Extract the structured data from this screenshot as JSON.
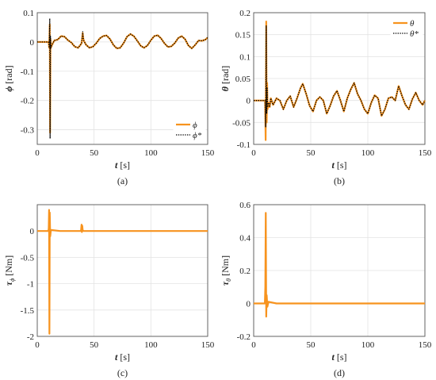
{
  "colors": {
    "measured": "#f7931e",
    "reference": "#000000",
    "grid": "#e3e3e3",
    "axis": "#555555"
  },
  "chart_data": [
    {
      "type": "line",
      "caption": "(a)",
      "xlabel_sym": "t",
      "xlabel_unit": "[s]",
      "ylabel_sym": "ϕ",
      "ylabel_unit": "[rad]",
      "xlim": [
        0,
        150
      ],
      "ylim": [
        -0.35,
        0.1
      ],
      "xticks": [
        0,
        50,
        100,
        150
      ],
      "yticks": [
        0.1,
        0,
        -0.1,
        -0.2,
        -0.3
      ],
      "ytick_labels": [
        "0.1",
        "0",
        "-0.1",
        "-0.2",
        "-0.3"
      ],
      "grid": true,
      "legend_position": "bottom-right",
      "series": [
        {
          "name": "ϕ",
          "style": "solid",
          "x": [
            0,
            10,
            10.5,
            11,
            11.3,
            11.6,
            12,
            13,
            15,
            18,
            21,
            24,
            27,
            30,
            33,
            36,
            39,
            40,
            40.5,
            41,
            43,
            46,
            49,
            52,
            55,
            58,
            61,
            64,
            67,
            70,
            73,
            76,
            79,
            82,
            85,
            88,
            91,
            94,
            97,
            100,
            103,
            106,
            109,
            112,
            115,
            118,
            121,
            124,
            127,
            130,
            133,
            136,
            139,
            142,
            145,
            148,
            150
          ],
          "y": [
            0,
            0,
            -0.02,
            0.06,
            -0.31,
            0.01,
            -0.02,
            -0.01,
            0.005,
            0.008,
            0.02,
            0.018,
            0.006,
            -0.002,
            -0.016,
            -0.02,
            -0.005,
            0.03,
            0.012,
            0.004,
            -0.01,
            -0.02,
            -0.016,
            -0.004,
            0.012,
            0.02,
            0.022,
            0.01,
            -0.01,
            -0.022,
            -0.02,
            -0.004,
            0.018,
            0.027,
            0.02,
            0.004,
            -0.013,
            -0.02,
            -0.012,
            0.006,
            0.02,
            0.023,
            0.012,
            -0.005,
            -0.017,
            -0.015,
            -0.004,
            0.013,
            0.02,
            0.01,
            -0.012,
            -0.022,
            -0.01,
            0.005,
            0.004,
            0.008,
            0.015
          ]
        },
        {
          "name": "ϕ*",
          "style": "dotted",
          "x": [
            0,
            10,
            10.5,
            11,
            11.3,
            11.6,
            12,
            13,
            15,
            18,
            21,
            24,
            27,
            30,
            33,
            36,
            39,
            40,
            40.5,
            41,
            43,
            46,
            49,
            52,
            55,
            58,
            61,
            64,
            67,
            70,
            73,
            76,
            79,
            82,
            85,
            88,
            91,
            94,
            97,
            100,
            103,
            106,
            109,
            112,
            115,
            118,
            121,
            124,
            127,
            130,
            133,
            136,
            139,
            142,
            145,
            148,
            150
          ],
          "y": [
            0,
            0,
            -0.02,
            0.08,
            -0.33,
            0.02,
            -0.02,
            -0.01,
            0.005,
            0.008,
            0.02,
            0.018,
            0.006,
            -0.002,
            -0.016,
            -0.02,
            -0.005,
            0.035,
            0.015,
            0.004,
            -0.01,
            -0.02,
            -0.016,
            -0.004,
            0.012,
            0.02,
            0.022,
            0.01,
            -0.01,
            -0.022,
            -0.02,
            -0.004,
            0.018,
            0.027,
            0.02,
            0.004,
            -0.013,
            -0.02,
            -0.012,
            0.006,
            0.02,
            0.023,
            0.012,
            -0.005,
            -0.017,
            -0.015,
            -0.004,
            0.013,
            0.02,
            0.01,
            -0.012,
            -0.022,
            -0.01,
            0.005,
            0.004,
            0.008,
            0.015
          ]
        }
      ]
    },
    {
      "type": "line",
      "caption": "(b)",
      "xlabel_sym": "t",
      "xlabel_unit": "[s]",
      "ylabel_sym": "θ",
      "ylabel_unit": "[rad]",
      "xlim": [
        0,
        150
      ],
      "ylim": [
        -0.1,
        0.2
      ],
      "xticks": [
        0,
        50,
        100,
        150
      ],
      "yticks": [
        0.2,
        0.15,
        0.1,
        0.05,
        0,
        -0.05,
        -0.1
      ],
      "ytick_labels": [
        "0.2",
        "0.15",
        "0.1",
        "0.05",
        "0",
        "-0.05",
        "-0.1"
      ],
      "grid": true,
      "legend_position": "top-right",
      "series": [
        {
          "name": "θ",
          "style": "solid",
          "x": [
            0,
            10,
            10.5,
            11,
            11.4,
            11.8,
            12.2,
            13,
            14,
            15,
            17,
            20,
            23,
            26,
            29,
            32,
            35,
            38,
            41,
            43,
            46,
            49,
            52,
            55,
            58,
            61,
            64,
            67,
            70,
            73,
            76,
            79,
            82,
            85,
            88,
            91,
            94,
            97,
            100,
            103,
            106,
            109,
            112,
            115,
            118,
            121,
            124,
            127,
            130,
            133,
            136,
            139,
            142,
            145,
            148,
            150
          ],
          "y": [
            0,
            0,
            -0.09,
            0.18,
            -0.05,
            0.04,
            -0.02,
            -0.005,
            -0.015,
            0.005,
            -0.01,
            0.005,
            0.0,
            -0.02,
            0.0,
            0.01,
            -0.015,
            0.005,
            0.028,
            0.038,
            0.015,
            -0.012,
            -0.025,
            0.0,
            0.008,
            0.0,
            -0.03,
            -0.012,
            0.01,
            0.022,
            0.0,
            -0.025,
            0.005,
            0.025,
            0.04,
            0.015,
            0.0,
            -0.02,
            -0.03,
            -0.005,
            0.012,
            0.005,
            -0.035,
            -0.02,
            0.005,
            0.008,
            0.0,
            0.033,
            0.01,
            -0.01,
            -0.02,
            0.003,
            0.018,
            0.0,
            -0.01,
            0.0
          ]
        },
        {
          "name": "θ*",
          "style": "dotted",
          "x": [
            0,
            10,
            10.5,
            11,
            11.4,
            11.8,
            12.2,
            13,
            14,
            15,
            17,
            20,
            23,
            26,
            29,
            32,
            35,
            38,
            41,
            43,
            46,
            49,
            52,
            55,
            58,
            61,
            64,
            67,
            70,
            73,
            76,
            79,
            82,
            85,
            88,
            91,
            94,
            97,
            100,
            103,
            106,
            109,
            112,
            115,
            118,
            121,
            124,
            127,
            130,
            133,
            136,
            139,
            142,
            145,
            148,
            150
          ],
          "y": [
            0,
            0,
            -0.06,
            0.17,
            -0.03,
            0.03,
            -0.015,
            -0.005,
            -0.015,
            0.005,
            -0.01,
            0.005,
            0.0,
            -0.02,
            0.0,
            0.01,
            -0.015,
            0.005,
            0.028,
            0.038,
            0.015,
            -0.012,
            -0.025,
            0.0,
            0.008,
            0.0,
            -0.03,
            -0.012,
            0.01,
            0.022,
            0.0,
            -0.025,
            0.005,
            0.025,
            0.04,
            0.015,
            0.0,
            -0.02,
            -0.03,
            -0.005,
            0.012,
            0.005,
            -0.035,
            -0.02,
            0.005,
            0.008,
            0.0,
            0.033,
            0.01,
            -0.01,
            -0.02,
            0.003,
            0.018,
            0.0,
            -0.01,
            0.0
          ]
        }
      ]
    },
    {
      "type": "line",
      "caption": "(c)",
      "xlabel_sym": "t",
      "xlabel_unit": "[s]",
      "ylabel_sym": "τ",
      "ylabel_sub": "ϕ",
      "ylabel_unit": "[Nm]",
      "xlim": [
        0,
        150
      ],
      "ylim": [
        -2,
        0.5
      ],
      "xticks": [
        0,
        50,
        100,
        150
      ],
      "yticks": [
        0,
        -0.5,
        -1,
        -1.5,
        -2
      ],
      "ytick_labels": [
        "0",
        "-0.5",
        "-1",
        "-1.5",
        "-2"
      ],
      "grid": true,
      "series": [
        {
          "name": "",
          "style": "solid",
          "x": [
            0,
            9.8,
            10.1,
            10.4,
            10.7,
            11.0,
            11.4,
            12,
            20,
            38.5,
            39,
            39.3,
            39.6,
            40,
            41,
            60,
            90,
            120,
            150
          ],
          "y": [
            0,
            0,
            0.05,
            0.4,
            -1.95,
            0.35,
            -0.1,
            0.02,
            0,
            0,
            0.12,
            -0.02,
            0.1,
            0.01,
            0,
            0,
            0,
            0,
            0
          ]
        }
      ]
    },
    {
      "type": "line",
      "caption": "(d)",
      "xlabel_sym": "t",
      "xlabel_unit": "[s]",
      "ylabel_sym": "τ",
      "ylabel_sub": "θ",
      "ylabel_unit": "[Nm]",
      "xlim": [
        0,
        150
      ],
      "ylim": [
        -0.2,
        0.6
      ],
      "xticks": [
        0,
        50,
        100,
        150
      ],
      "yticks": [
        0.6,
        0.4,
        0.2,
        0,
        -0.2
      ],
      "ytick_labels": [
        "0.6",
        "0.4",
        "0.2",
        "0",
        "-0.2"
      ],
      "grid": true,
      "series": [
        {
          "name": "",
          "style": "solid",
          "x": [
            0,
            9.8,
            10.2,
            10.6,
            11.0,
            11.4,
            12,
            13,
            20,
            40,
            60,
            90,
            120,
            150
          ],
          "y": [
            0,
            0,
            0.1,
            0.55,
            -0.08,
            0.05,
            -0.02,
            0.01,
            0,
            0,
            0,
            0,
            0,
            0
          ]
        }
      ]
    }
  ]
}
